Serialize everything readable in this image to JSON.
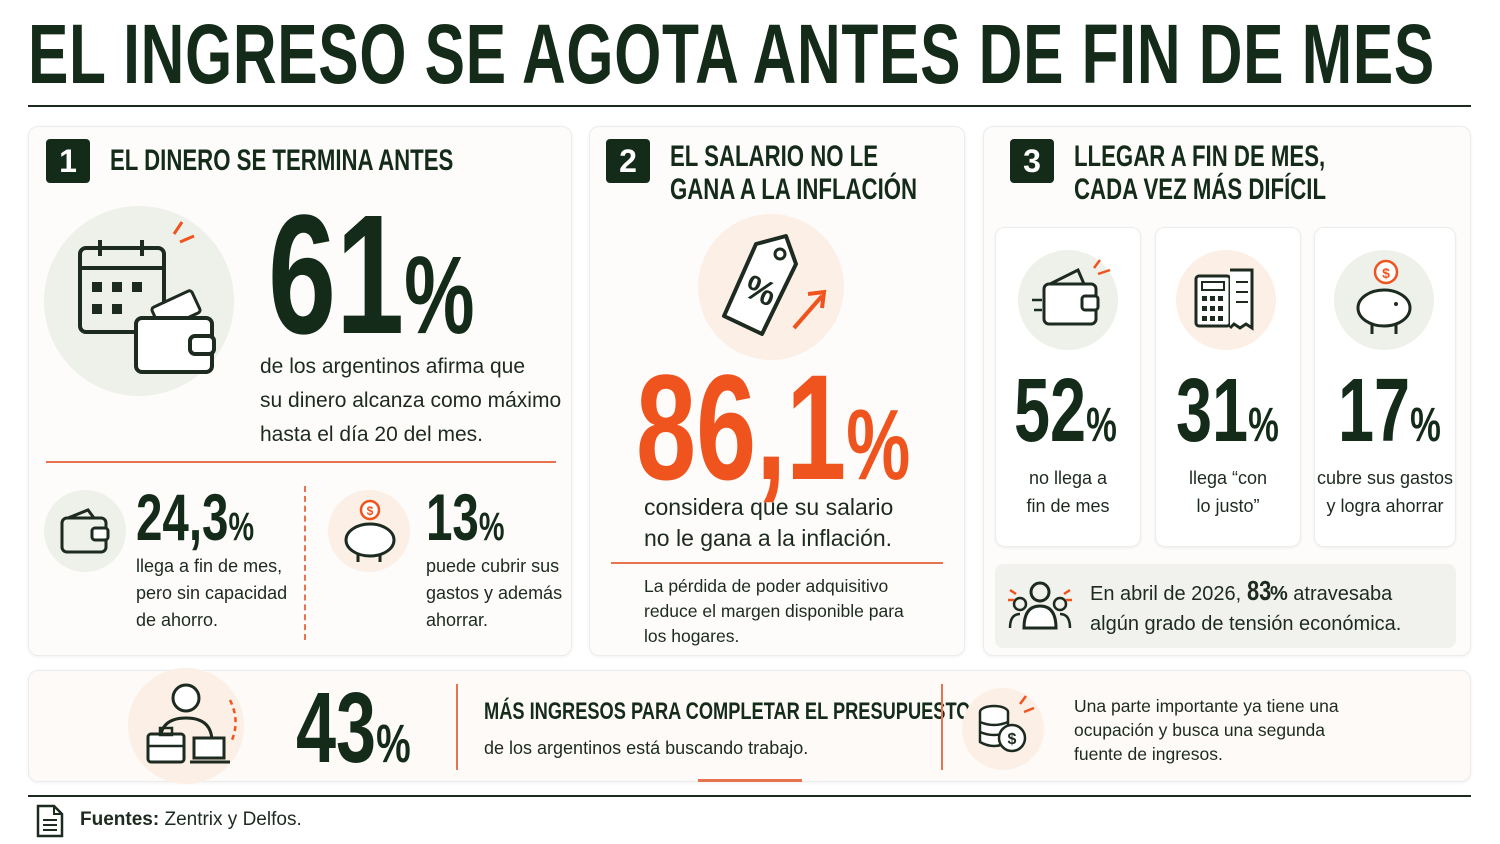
{
  "title": "EL INGRESO SE AGOTA ANTES DE FIN DE MES",
  "section1": {
    "number": "1",
    "title": "EL DINERO SE TERMINA ANTES",
    "big_value": "61",
    "big_unit": "%",
    "description": [
      "de los argentinos afirma que",
      "su dinero alcanza como máximo",
      "hasta el día 20 del mes."
    ],
    "stat_a": {
      "value": "24,3",
      "unit": "%",
      "lines": [
        "llega a fin de mes,",
        "pero sin capacidad",
        "de ahorro."
      ]
    },
    "stat_b": {
      "value": "13",
      "unit": "%",
      "lines": [
        "puede cubrir sus",
        "gastos y además",
        "ahorrar."
      ]
    }
  },
  "section2": {
    "number": "2",
    "title_lines": [
      "EL SALARIO NO LE",
      "GANA A LA INFLACIÓN"
    ],
    "big_value": "86,1",
    "big_unit": "%",
    "description": [
      "considera que su salario",
      "no le gana a la inflación."
    ],
    "note": [
      "La pérdida de poder adquisitivo",
      "reduce el margen disponible para",
      "los hogares."
    ]
  },
  "section3": {
    "number": "3",
    "title_lines": [
      "LLEGAR A FIN DE MES,",
      "CADA VEZ MÁS DIFÍCIL"
    ],
    "stats": [
      {
        "value": "52",
        "unit": "%",
        "lines": [
          "no llega a",
          "fin de mes"
        ]
      },
      {
        "value": "31",
        "unit": "%",
        "lines": [
          "llega “con",
          "lo justo”"
        ]
      },
      {
        "value": "17",
        "unit": "%",
        "lines": [
          "cubre sus gastos",
          "y logra ahorrar"
        ]
      }
    ],
    "callout_pre": "En abril de 2026, ",
    "callout_value": "83",
    "callout_unit": "%",
    "callout_post": " atravesaba",
    "callout_line2": "algún grado de tensión económica."
  },
  "bottom": {
    "value": "43",
    "unit": "%",
    "heading": "MÁS INGRESOS PARA COMPLETAR EL PRESUPUESTO",
    "text": "de los argentinos está buscando trabajo.",
    "note": [
      "Una parte importante ya tiene una",
      "ocupación y busca una segunda",
      "fuente de ingresos."
    ]
  },
  "sources": {
    "label": "Fuentes:",
    "text": " Zentrix y Delfos."
  },
  "colors": {
    "dark_green": "#142b1a",
    "orange": "#f0541e",
    "peach": "#fcefe6",
    "light_green": "#eef0ea"
  }
}
